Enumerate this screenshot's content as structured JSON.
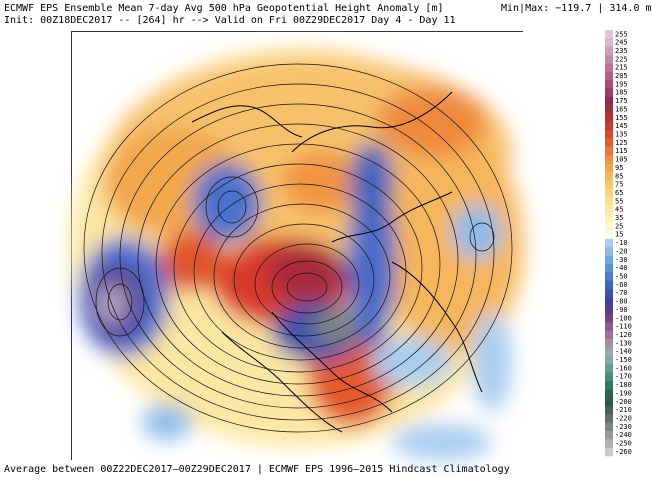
{
  "header": {
    "title": "ECMWF EPS Ensemble Mean 7-day Avg 500 hPa Geopotential Height Anomaly [m]",
    "init_line": "Init: 00Z18DEC2017 -- [264] hr --> Valid on Fri 00Z29DEC2017  Day 4 - Day 11",
    "minmax": "Min|Max: −119.7 | 314.0 m"
  },
  "footer": {
    "text": "Average between 00Z22DEC2017–00Z29DEC2017 | ECMWF EPS 1996–2015 Hindcast Climatology"
  },
  "colorbar": {
    "labels": [
      "255",
      "245",
      "235",
      "225",
      "215",
      "205",
      "195",
      "185",
      "175",
      "165",
      "155",
      "145",
      "135",
      "125",
      "115",
      "105",
      "95",
      "85",
      "75",
      "65",
      "55",
      "45",
      "35",
      "25",
      "15",
      "-10",
      "-20",
      "-30",
      "-40",
      "-50",
      "-60",
      "-70",
      "-80",
      "-90",
      "-100",
      "-110",
      "-120",
      "-130",
      "-140",
      "-150",
      "-160",
      "-170",
      "-180",
      "-190",
      "-200",
      "-210",
      "-220",
      "-230",
      "-240",
      "-250",
      "-260"
    ],
    "colors": [
      "#e0c7d6",
      "#d8b5c9",
      "#cf9fb9",
      "#c689a8",
      "#bd7398",
      "#b55f88",
      "#aa4b77",
      "#9e3a66",
      "#8c2a54",
      "#a0303a",
      "#b83232",
      "#c93a2c",
      "#d84a2a",
      "#e26030",
      "#e87a36",
      "#ee9240",
      "#f2a64c",
      "#f5b85a",
      "#f7c86a",
      "#f9d67c",
      "#fbe08e",
      "#fce8a0",
      "#fdf0b4",
      "#fef6c8",
      "#fffbe0",
      "#a8cdf0",
      "#8cbcea",
      "#70a8e2",
      "#5a92d8",
      "#4a7ccc",
      "#3f66be",
      "#3c52ae",
      "#42409c",
      "#5a3c8c",
      "#73437e",
      "#8a5a88",
      "#9c7294",
      "#ad8aa2",
      "#9aa6b4",
      "#82a8a8",
      "#64a08e",
      "#468f74",
      "#2f7a5e",
      "#26664e",
      "#2d5a48",
      "#4a5e55",
      "#65706a",
      "#7e8580",
      "#989b98",
      "#b1b2b0",
      "#cacaca"
    ]
  }
}
